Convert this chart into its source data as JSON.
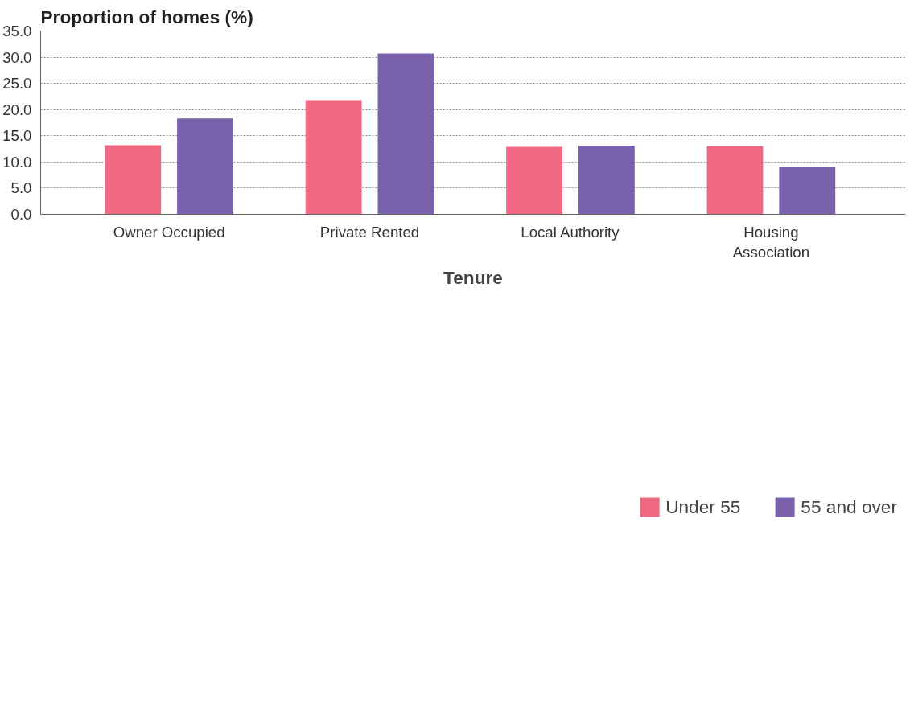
{
  "chart_data": {
    "type": "bar",
    "ylabel": "Proportion of homes (%)",
    "xlabel": "Tenure",
    "categories": [
      "Owner Occupied",
      "Private Rented",
      "Local Authority",
      "Housing Association"
    ],
    "series": [
      {
        "name": "Under 55",
        "color": "#f06882",
        "values": [
          13.2,
          21.8,
          12.9,
          13.0
        ]
      },
      {
        "name": "55 and over",
        "color": "#7a62ad",
        "values": [
          18.3,
          30.7,
          13.1,
          9.0
        ]
      }
    ],
    "ylim": [
      0,
      35
    ],
    "yticks": [
      {
        "value": 0,
        "label": "0.0"
      },
      {
        "value": 5,
        "label": "5.0"
      },
      {
        "value": 10,
        "label": "10.0"
      },
      {
        "value": 15,
        "label": "15.0"
      },
      {
        "value": 20,
        "label": "20.0"
      },
      {
        "value": 25,
        "label": "25.0"
      },
      {
        "value": 30,
        "label": "30.0"
      },
      {
        "value": 35,
        "label": "35.0"
      }
    ],
    "grid": "y",
    "legend": "bottom"
  }
}
